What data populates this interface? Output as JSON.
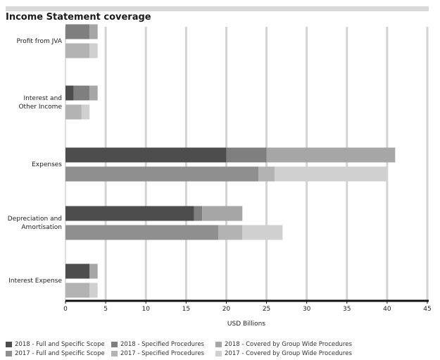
{
  "title": "Income Statement coverage",
  "chart_data": {
    "type": "bar",
    "orientation": "horizontal",
    "stacked": true,
    "title": "Income Statement coverage",
    "xlabel": "USD Billions",
    "ylabel": "",
    "xlim": [
      0,
      45
    ],
    "xticks": [
      0,
      5,
      10,
      15,
      20,
      25,
      30,
      35,
      40,
      45
    ],
    "grid": "vertical",
    "legend_position": "bottom",
    "categories": [
      "Profit from JVA",
      "Interest and Other Income",
      "Expenses",
      "Depreciation and Amortisation",
      "Interest Expense"
    ],
    "category_label_lines": [
      [
        "Profit from JVA"
      ],
      [
        "Interest and",
        "Other Income"
      ],
      [
        "Expenses"
      ],
      [
        "Depreciation and",
        "Amortisation"
      ],
      [
        "Interest Expense"
      ]
    ],
    "groups": [
      {
        "year": "2018",
        "series": [
          {
            "name": "2018 - Full and Specific Scope",
            "color": "#4d4d4d",
            "values": [
              0,
              1,
              20,
              16,
              3
            ]
          },
          {
            "name": "2018 - Specified Procedures",
            "color": "#7f7f7f",
            "values": [
              3,
              2,
              5,
              1,
              0
            ]
          },
          {
            "name": "2018 - Covered by Group Wide Procedures",
            "color": "#a6a6a6",
            "values": [
              1,
              1,
              16,
              5,
              1
            ]
          }
        ]
      },
      {
        "year": "2017",
        "series": [
          {
            "name": "2017 - Full and Specific Scope",
            "color": "#8f8f8f",
            "values": [
              0,
              0,
              24,
              19,
              0
            ]
          },
          {
            "name": "2017 - Specified Procedures",
            "color": "#b3b3b3",
            "values": [
              3,
              2,
              2,
              3,
              3
            ]
          },
          {
            "name": "2017 - Covered by Group Wide Procedures",
            "color": "#d0d0d0",
            "values": [
              1,
              1,
              14,
              5,
              1
            ]
          }
        ]
      }
    ]
  }
}
